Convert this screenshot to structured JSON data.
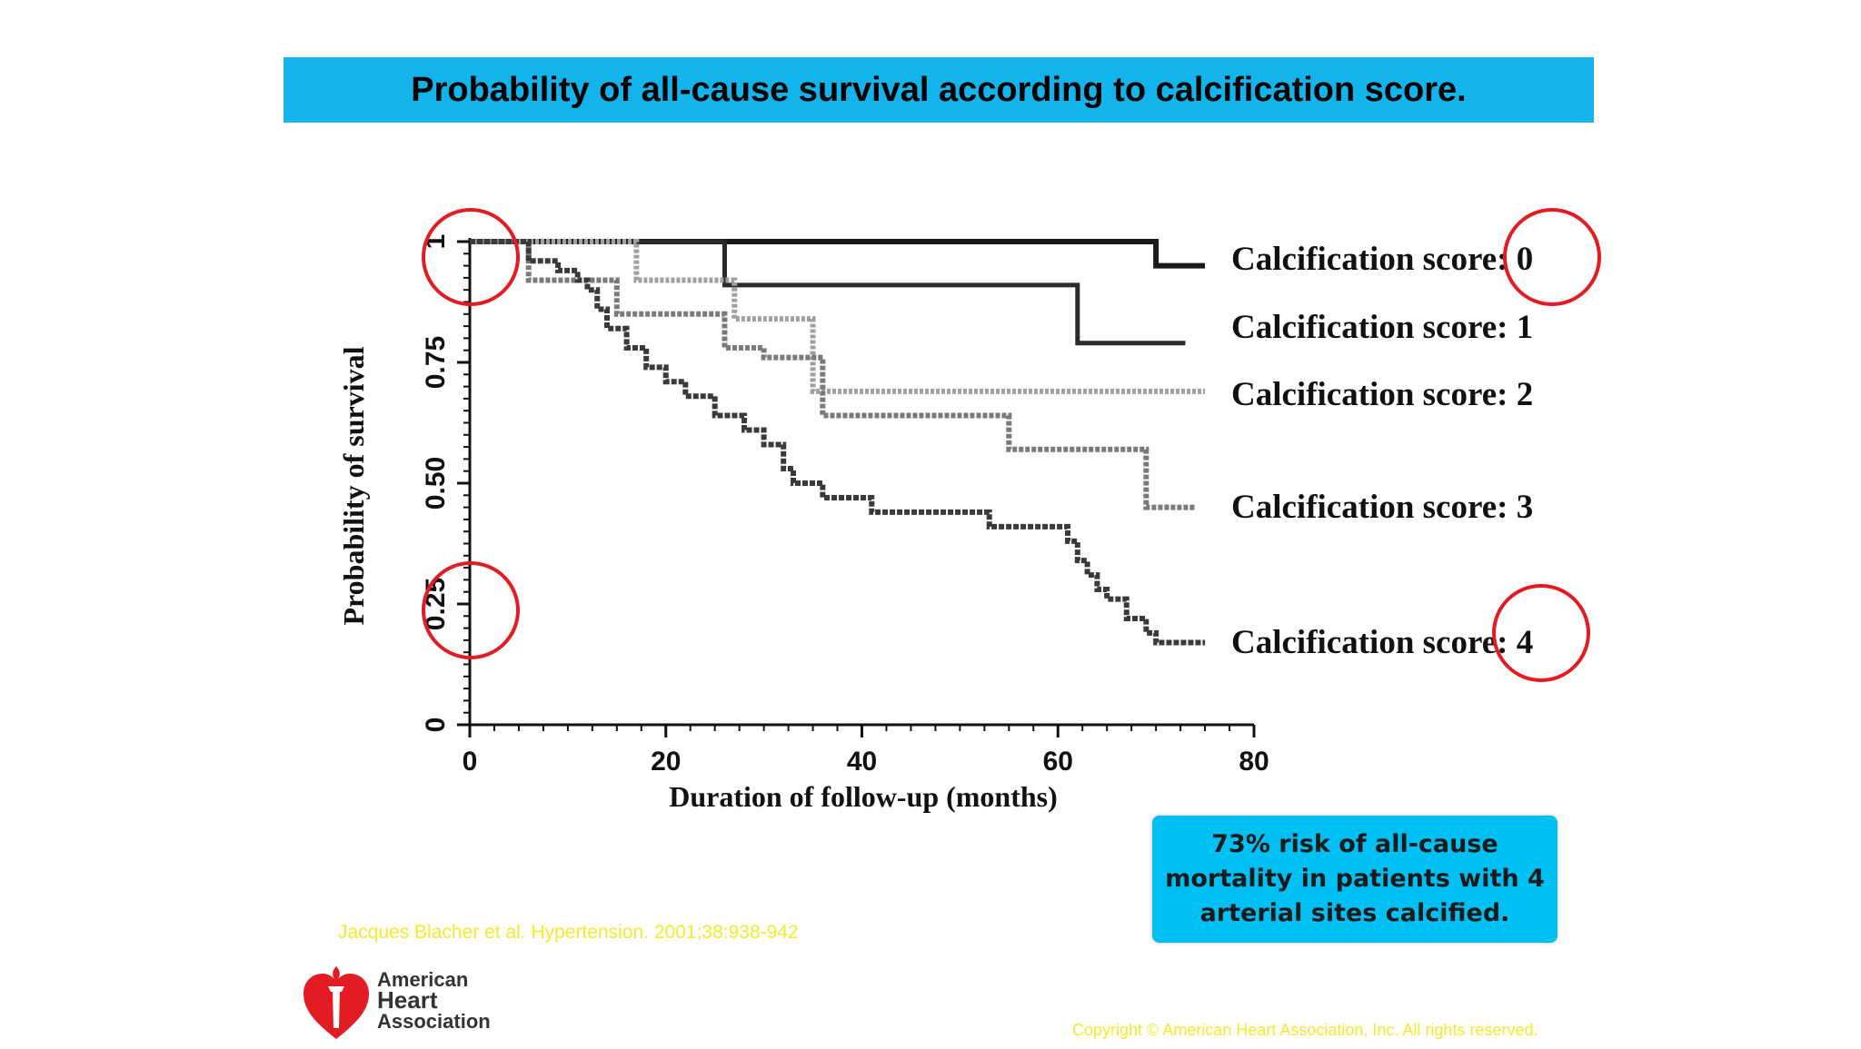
{
  "title": "Probability of all-cause survival according to calcification score.",
  "callout": "73% risk of all-cause mortality in patients with 4 arterial sites calcified.",
  "citation": "Jacques Blacher et al. Hypertension. 2001;38:938-942",
  "copyright": "Copyright © American Heart Association, Inc. All rights reserved.",
  "logo": {
    "line1": "American",
    "line2": "Heart",
    "line3": "Association",
    "icon": "heart-torch-icon",
    "color": "#e31b23"
  },
  "highlight_color": "#e31b23",
  "chart_data": {
    "type": "line",
    "xlabel": "Duration of follow-up (months)",
    "ylabel": "Probability of survival",
    "xlim": [
      0,
      80
    ],
    "ylim": [
      0,
      1
    ],
    "xticks": [
      0,
      20,
      40,
      60,
      80
    ],
    "yticks": [
      0,
      0.25,
      0.5,
      0.75,
      1
    ],
    "ytick_labels": [
      "0",
      "0.25",
      "0.50",
      "0.75",
      "1"
    ],
    "grid": false,
    "step": true,
    "series": [
      {
        "name": "Calcification score: 0",
        "color": "#1a1a1a",
        "x": [
          0,
          70,
          70,
          75
        ],
        "y": [
          1,
          1,
          0.95,
          0.95
        ]
      },
      {
        "name": "Calcification score: 1",
        "color": "#2a2a2a",
        "x": [
          0,
          26,
          26,
          62,
          62,
          73
        ],
        "y": [
          1,
          1,
          0.91,
          0.91,
          0.79,
          0.79
        ]
      },
      {
        "name": "Calcification score: 2",
        "color": "#a0a0a0",
        "x": [
          0,
          17,
          17,
          27,
          27,
          35,
          35,
          75
        ],
        "y": [
          1,
          1,
          0.92,
          0.92,
          0.84,
          0.84,
          0.69,
          0.69
        ]
      },
      {
        "name": "Calcification score: 3",
        "color": "#7a7a7a",
        "x": [
          0,
          6,
          6,
          15,
          15,
          26,
          26,
          30,
          30,
          36,
          36,
          55,
          55,
          69,
          69,
          74
        ],
        "y": [
          1,
          1,
          0.92,
          0.92,
          0.85,
          0.85,
          0.78,
          0.78,
          0.76,
          0.76,
          0.64,
          0.64,
          0.57,
          0.57,
          0.45,
          0.45
        ]
      },
      {
        "name": "Calcification score: 4",
        "color": "#3a3a3a",
        "x": [
          0,
          6,
          9,
          11,
          12,
          13,
          14,
          16,
          18,
          20,
          22,
          25,
          28,
          30,
          32,
          33,
          36,
          41,
          53,
          61,
          62,
          63,
          64,
          65,
          67,
          69,
          70,
          75
        ],
        "y": [
          1,
          0.96,
          0.94,
          0.92,
          0.9,
          0.86,
          0.82,
          0.78,
          0.74,
          0.71,
          0.68,
          0.64,
          0.61,
          0.58,
          0.53,
          0.5,
          0.47,
          0.44,
          0.41,
          0.38,
          0.34,
          0.31,
          0.28,
          0.26,
          0.22,
          0.19,
          0.17,
          0.17
        ]
      }
    ]
  }
}
